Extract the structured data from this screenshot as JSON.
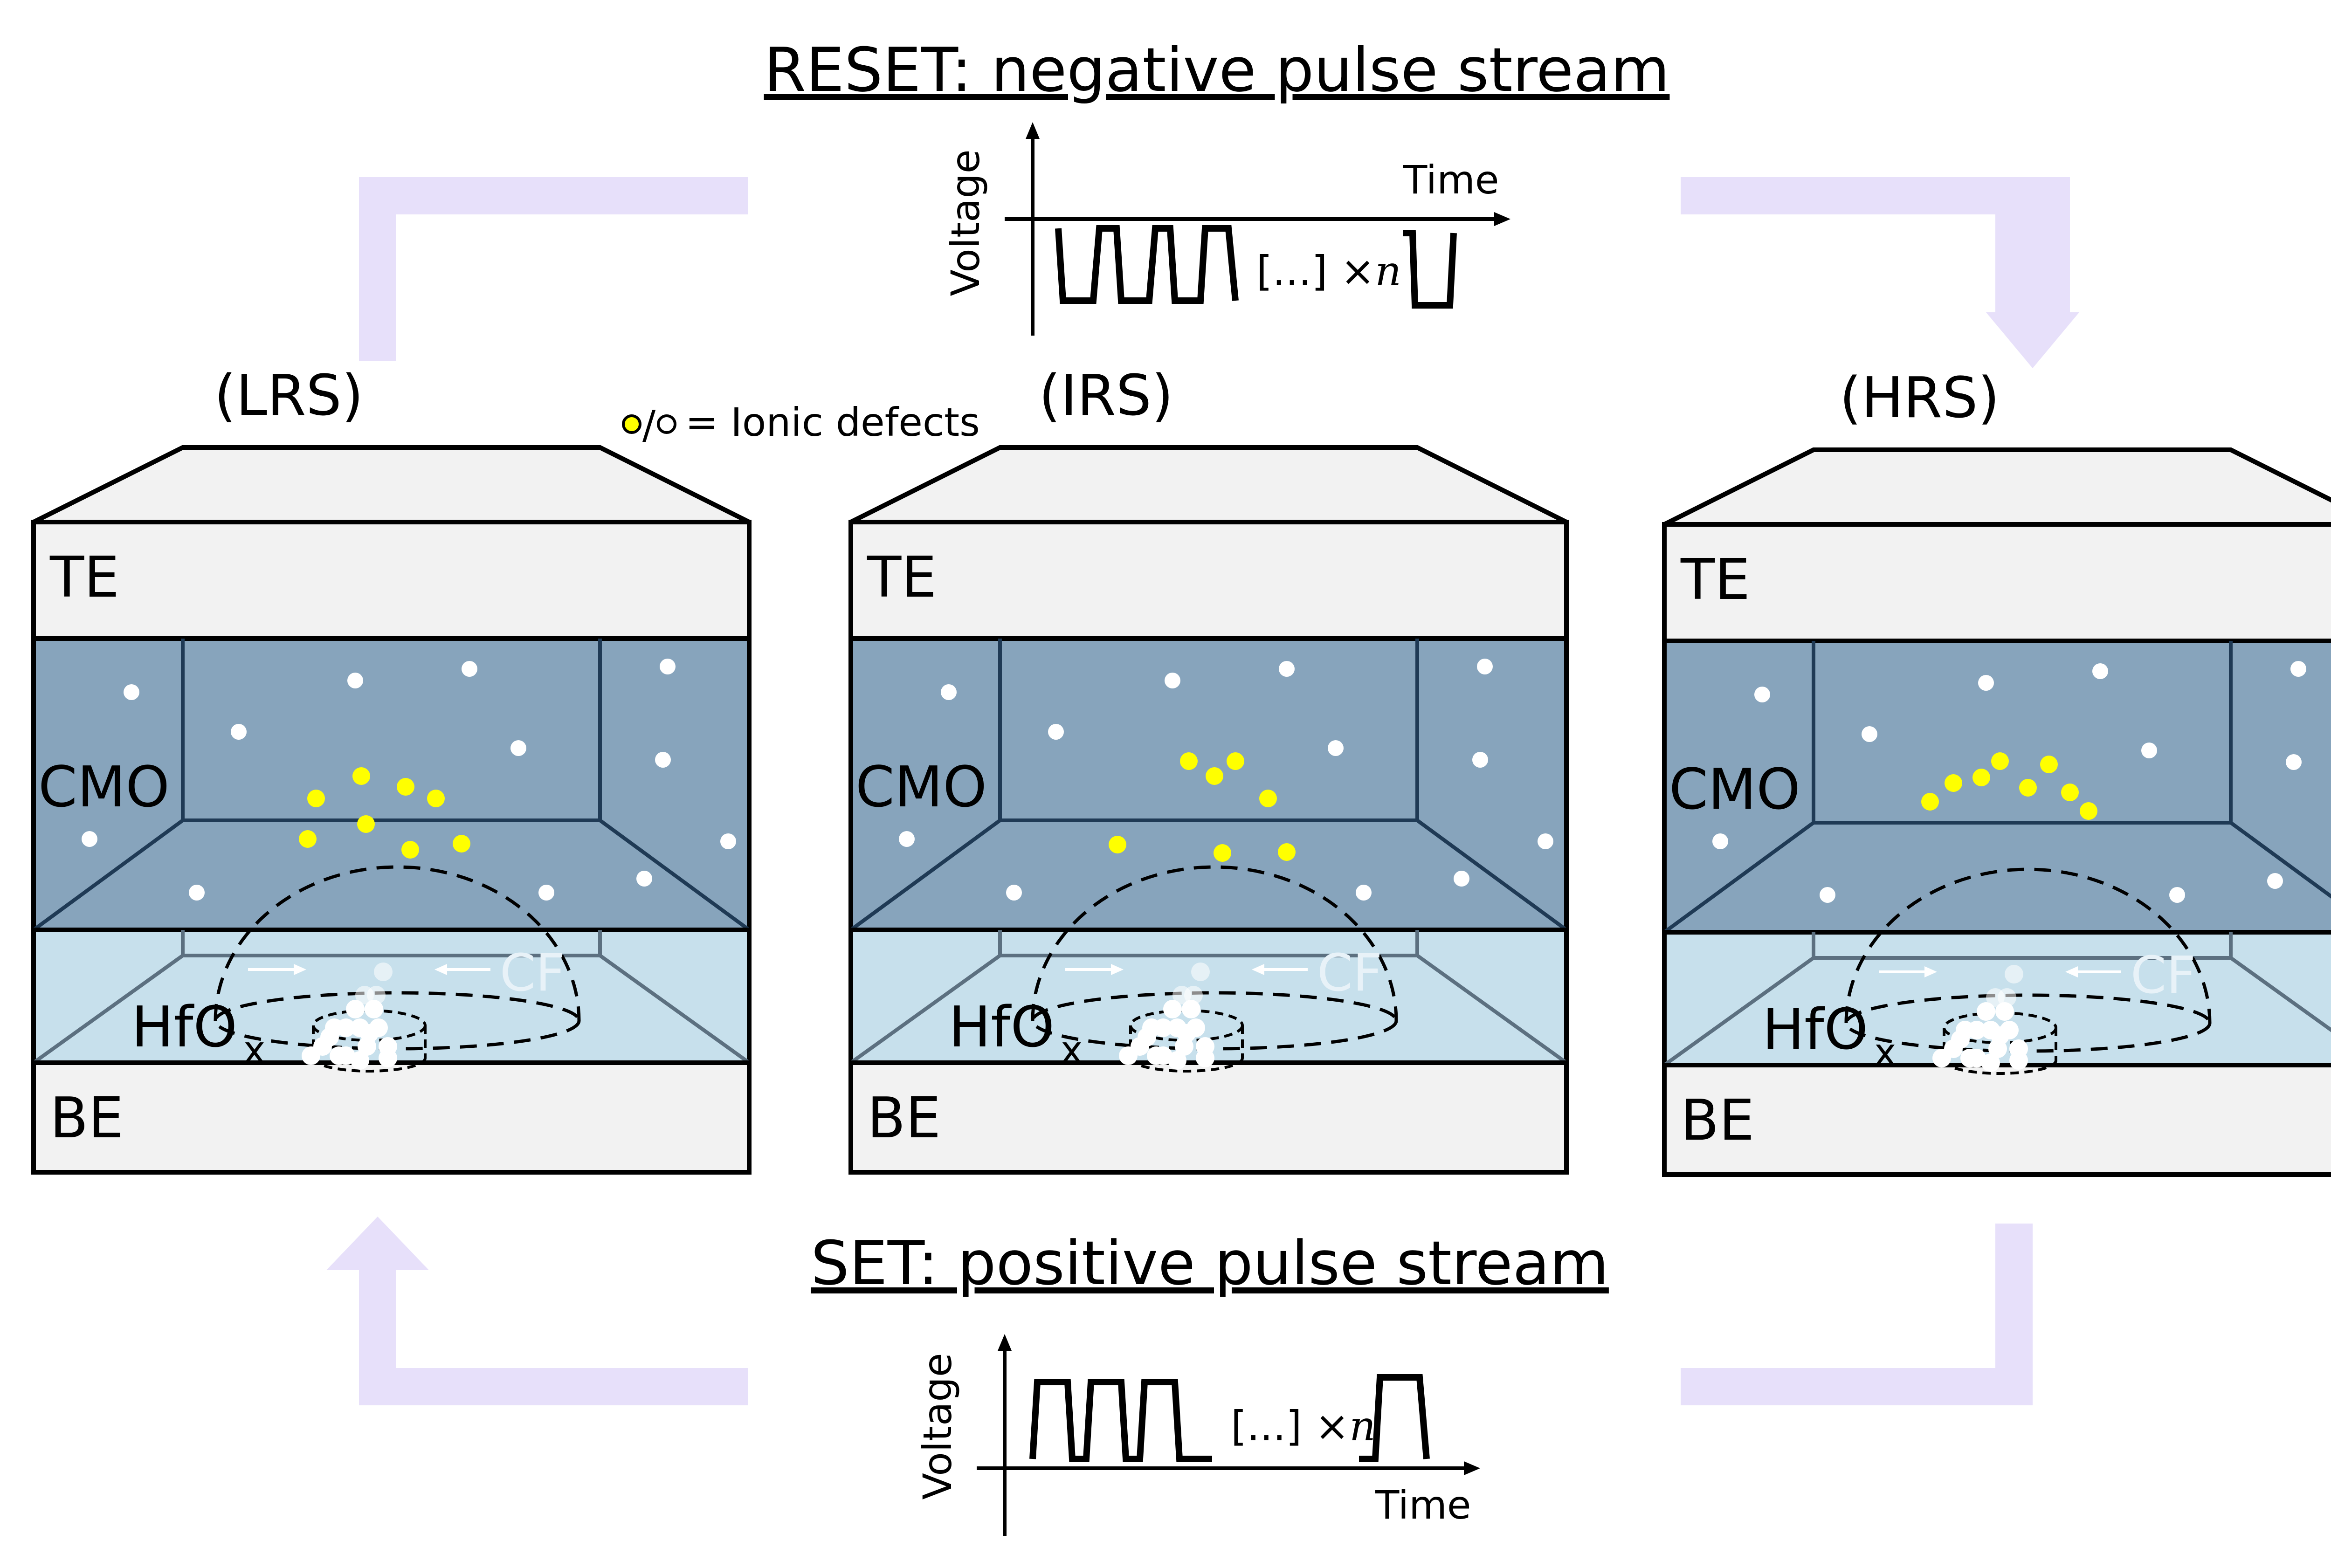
{
  "reset": {
    "title": "RESET: negative pulse stream",
    "ylabel": "Voltage",
    "xlabel": "Time",
    "repeat": "[...] ×",
    "repeat_var": "n"
  },
  "set": {
    "title": "SET: positive pulse stream",
    "ylabel": "Voltage",
    "xlabel": "Time",
    "repeat": "[...] ×",
    "repeat_var": "n"
  },
  "legend": {
    "text": "= Ionic defects"
  },
  "states": [
    {
      "label": "(LRS)",
      "te": "TE",
      "cmo": "CMO",
      "hfo": "HfO",
      "hfo_sub": "x",
      "be": "BE",
      "cf": "CF"
    },
    {
      "label": "(IRS)",
      "te": "TE",
      "cmo": "CMO",
      "hfo": "HfO",
      "hfo_sub": "x",
      "be": "BE",
      "cf": "CF"
    },
    {
      "label": "(HRS)",
      "te": "TE",
      "cmo": "CMO",
      "hfo": "HfO",
      "hfo_sub": "x",
      "be": "BE",
      "cf": "CF"
    }
  ],
  "colors": {
    "arrow": "#e7e0fa",
    "cmo": "#87a4bc",
    "hfo": "#c7e0ec",
    "electrode": "#f2f2f2",
    "defect_yellow": "#ffff00",
    "outline": "#000000"
  }
}
